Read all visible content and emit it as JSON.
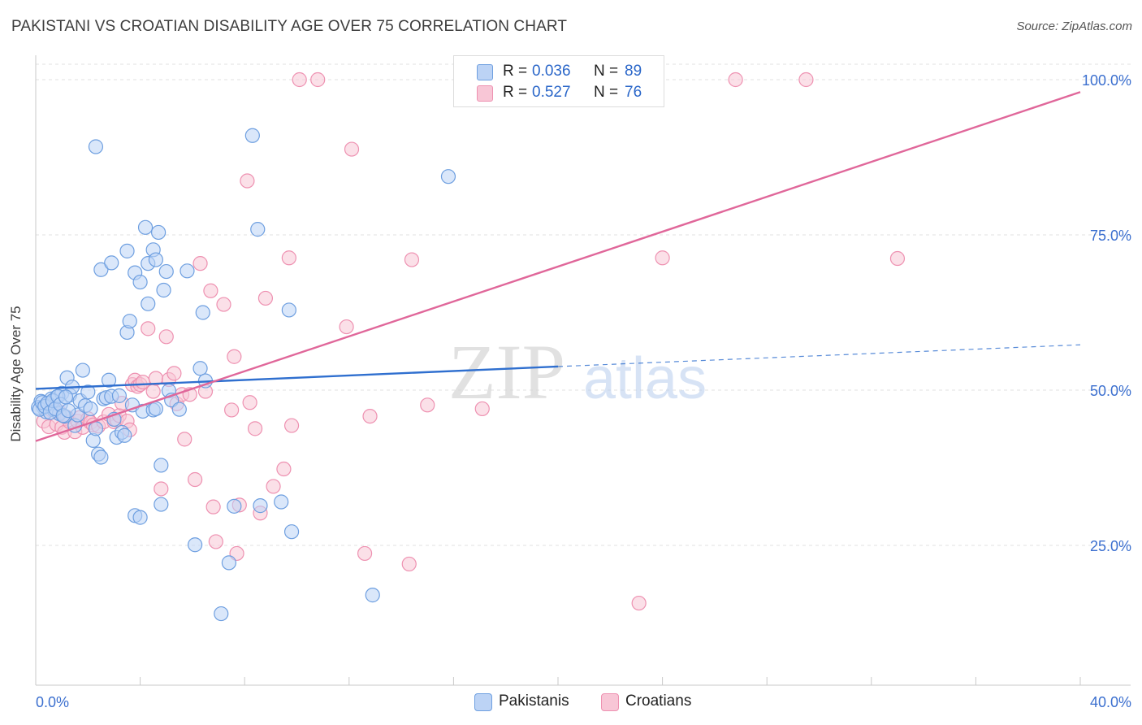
{
  "title": "PAKISTANI VS CROATIAN DISABILITY AGE OVER 75 CORRELATION CHART",
  "source": "Source: ZipAtlas.com",
  "watermark": {
    "zip": "ZIP",
    "atlas": "atlas"
  },
  "legend": {
    "rows": [
      {
        "r_label": "R =",
        "r_value": "0.036",
        "n_label": "N =",
        "n_value": "89"
      },
      {
        "r_label": "R =",
        "r_value": "0.527",
        "n_label": "N =",
        "n_value": "76"
      }
    ]
  },
  "colors": {
    "blue": "#6e9fe0",
    "blue_fill": "#bcd3f5",
    "blue_line": "#2f6fcf",
    "pink": "#ee91b1",
    "pink_fill": "#f8c6d6",
    "pink_line": "#e0679a",
    "tick_text": "#3b6fcf",
    "grid": "#e2e2e2"
  },
  "chart_data": {
    "type": "scatter",
    "title": "PAKISTANI VS CROATIAN DISABILITY AGE OVER 75 CORRELATION CHART",
    "xlabel": "",
    "ylabel": "Disability Age Over 75",
    "xlim": [
      0,
      40
    ],
    "ylim": [
      2,
      103
    ],
    "x_tick_labels": [
      "0.0%",
      "40.0%"
    ],
    "y_tick_labels": [
      "25.0%",
      "50.0%",
      "75.0%",
      "100.0%"
    ],
    "y_ticks": [
      25,
      50,
      75,
      100
    ],
    "grid": true,
    "legend_position": "top-center",
    "series": [
      {
        "name": "Pakistanis",
        "color": "#6e9fe0",
        "trend": {
          "x": [
            0,
            20
          ],
          "y": [
            50.2,
            53.8
          ],
          "dashed_to": [
            40,
            57.3
          ]
        },
        "points": [
          [
            0.2,
            48.2
          ],
          [
            0.3,
            47.2
          ],
          [
            0.4,
            46.5
          ],
          [
            0.5,
            47.8
          ],
          [
            0.6,
            48.6
          ],
          [
            0.7,
            46.8
          ],
          [
            0.8,
            48.9
          ],
          [
            0.9,
            46.2
          ],
          [
            1.0,
            49.5
          ],
          [
            1.1,
            45.8
          ],
          [
            1.2,
            52.0
          ],
          [
            1.3,
            49.2
          ],
          [
            1.4,
            50.5
          ],
          [
            1.5,
            44.3
          ],
          [
            1.6,
            46.0
          ],
          [
            1.7,
            48.3
          ],
          [
            1.8,
            53.2
          ],
          [
            1.9,
            47.5
          ],
          [
            2.0,
            49.7
          ],
          [
            2.1,
            47.0
          ],
          [
            2.2,
            41.9
          ],
          [
            2.3,
            43.8
          ],
          [
            2.4,
            39.7
          ],
          [
            2.5,
            39.2
          ],
          [
            2.6,
            48.6
          ],
          [
            2.7,
            48.8
          ],
          [
            2.8,
            51.6
          ],
          [
            2.9,
            49.0
          ],
          [
            3.0,
            45.3
          ],
          [
            3.1,
            42.4
          ],
          [
            3.2,
            49.1
          ],
          [
            3.3,
            43.2
          ],
          [
            3.4,
            42.7
          ],
          [
            3.5,
            59.3
          ],
          [
            3.6,
            61.1
          ],
          [
            3.7,
            47.6
          ],
          [
            3.8,
            29.8
          ],
          [
            4.0,
            29.5
          ],
          [
            4.1,
            46.6
          ],
          [
            4.2,
            76.2
          ],
          [
            4.3,
            70.4
          ],
          [
            4.5,
            46.8
          ],
          [
            4.6,
            47.0
          ],
          [
            4.8,
            37.9
          ],
          [
            2.3,
            89.2
          ],
          [
            2.5,
            69.4
          ],
          [
            2.9,
            70.5
          ],
          [
            3.5,
            72.4
          ],
          [
            3.8,
            68.9
          ],
          [
            4.0,
            67.4
          ],
          [
            4.3,
            63.9
          ],
          [
            4.5,
            72.6
          ],
          [
            4.6,
            71.0
          ],
          [
            4.7,
            75.4
          ],
          [
            4.8,
            31.6
          ],
          [
            4.9,
            66.1
          ],
          [
            5.0,
            69.1
          ],
          [
            5.1,
            49.9
          ],
          [
            5.2,
            48.4
          ],
          [
            5.5,
            46.9
          ],
          [
            5.8,
            69.2
          ],
          [
            6.1,
            25.1
          ],
          [
            6.3,
            53.5
          ],
          [
            6.4,
            62.5
          ],
          [
            6.5,
            51.5
          ],
          [
            7.1,
            14.0
          ],
          [
            7.4,
            22.2
          ],
          [
            7.6,
            31.3
          ],
          [
            8.3,
            91.0
          ],
          [
            8.5,
            75.9
          ],
          [
            8.6,
            31.4
          ],
          [
            9.4,
            32.0
          ],
          [
            9.7,
            62.9
          ],
          [
            9.8,
            27.2
          ],
          [
            12.9,
            17.0
          ],
          [
            15.8,
            84.4
          ],
          [
            0.1,
            47.2
          ],
          [
            0.15,
            46.9
          ],
          [
            0.25,
            48.0
          ],
          [
            0.35,
            47.4
          ],
          [
            0.45,
            47.9
          ],
          [
            0.55,
            46.4
          ],
          [
            0.65,
            48.3
          ],
          [
            0.75,
            47.0
          ],
          [
            0.85,
            49.0
          ],
          [
            0.95,
            47.7
          ],
          [
            1.05,
            45.9
          ],
          [
            1.15,
            48.9
          ],
          [
            1.25,
            46.7
          ]
        ]
      },
      {
        "name": "Croatians",
        "color": "#ee91b1",
        "trend": {
          "x": [
            0,
            40
          ],
          "y": [
            41.8,
            98.0
          ]
        },
        "points": [
          [
            0.3,
            45.0
          ],
          [
            0.5,
            44.1
          ],
          [
            0.6,
            46.8
          ],
          [
            0.8,
            44.5
          ],
          [
            0.9,
            46.5
          ],
          [
            1.0,
            44.0
          ],
          [
            1.1,
            43.2
          ],
          [
            1.2,
            45.6
          ],
          [
            1.3,
            44.9
          ],
          [
            1.5,
            43.3
          ],
          [
            1.6,
            45.0
          ],
          [
            1.7,
            45.6
          ],
          [
            1.8,
            44.0
          ],
          [
            2.0,
            45.4
          ],
          [
            2.1,
            44.8
          ],
          [
            2.2,
            44.4
          ],
          [
            2.4,
            44.2
          ],
          [
            2.6,
            44.9
          ],
          [
            2.8,
            46.1
          ],
          [
            3.0,
            44.9
          ],
          [
            3.1,
            45.2
          ],
          [
            3.2,
            45.9
          ],
          [
            3.3,
            47.9
          ],
          [
            3.5,
            45.0
          ],
          [
            3.6,
            43.6
          ],
          [
            3.7,
            50.9
          ],
          [
            3.8,
            51.6
          ],
          [
            3.9,
            50.6
          ],
          [
            4.0,
            50.9
          ],
          [
            4.1,
            51.3
          ],
          [
            4.3,
            59.9
          ],
          [
            4.5,
            49.8
          ],
          [
            4.6,
            51.9
          ],
          [
            4.8,
            34.1
          ],
          [
            5.0,
            58.6
          ],
          [
            5.1,
            51.7
          ],
          [
            5.3,
            52.7
          ],
          [
            5.4,
            47.8
          ],
          [
            5.6,
            49.3
          ],
          [
            5.7,
            42.1
          ],
          [
            5.9,
            49.3
          ],
          [
            6.1,
            35.6
          ],
          [
            6.3,
            70.4
          ],
          [
            6.5,
            49.8
          ],
          [
            6.7,
            66.0
          ],
          [
            6.8,
            31.2
          ],
          [
            6.9,
            25.6
          ],
          [
            7.2,
            63.8
          ],
          [
            7.5,
            46.8
          ],
          [
            7.6,
            55.4
          ],
          [
            7.7,
            23.7
          ],
          [
            7.8,
            31.5
          ],
          [
            8.1,
            83.7
          ],
          [
            8.2,
            48.0
          ],
          [
            8.4,
            43.8
          ],
          [
            8.6,
            30.2
          ],
          [
            8.8,
            64.8
          ],
          [
            9.1,
            34.5
          ],
          [
            9.5,
            37.3
          ],
          [
            9.7,
            71.3
          ],
          [
            9.8,
            44.3
          ],
          [
            10.1,
            100.0
          ],
          [
            10.8,
            100.0
          ],
          [
            11.9,
            60.2
          ],
          [
            12.1,
            88.8
          ],
          [
            12.6,
            23.7
          ],
          [
            12.8,
            45.8
          ],
          [
            14.3,
            22.0
          ],
          [
            14.4,
            71.0
          ],
          [
            15.0,
            47.6
          ],
          [
            17.1,
            47.0
          ],
          [
            23.1,
            15.7
          ],
          [
            24.0,
            71.3
          ],
          [
            26.8,
            100.0
          ],
          [
            29.5,
            100.0
          ],
          [
            33.0,
            71.2
          ]
        ]
      }
    ]
  },
  "bottom_legend": [
    {
      "label": "Pakistanis"
    },
    {
      "label": "Croatians"
    }
  ]
}
